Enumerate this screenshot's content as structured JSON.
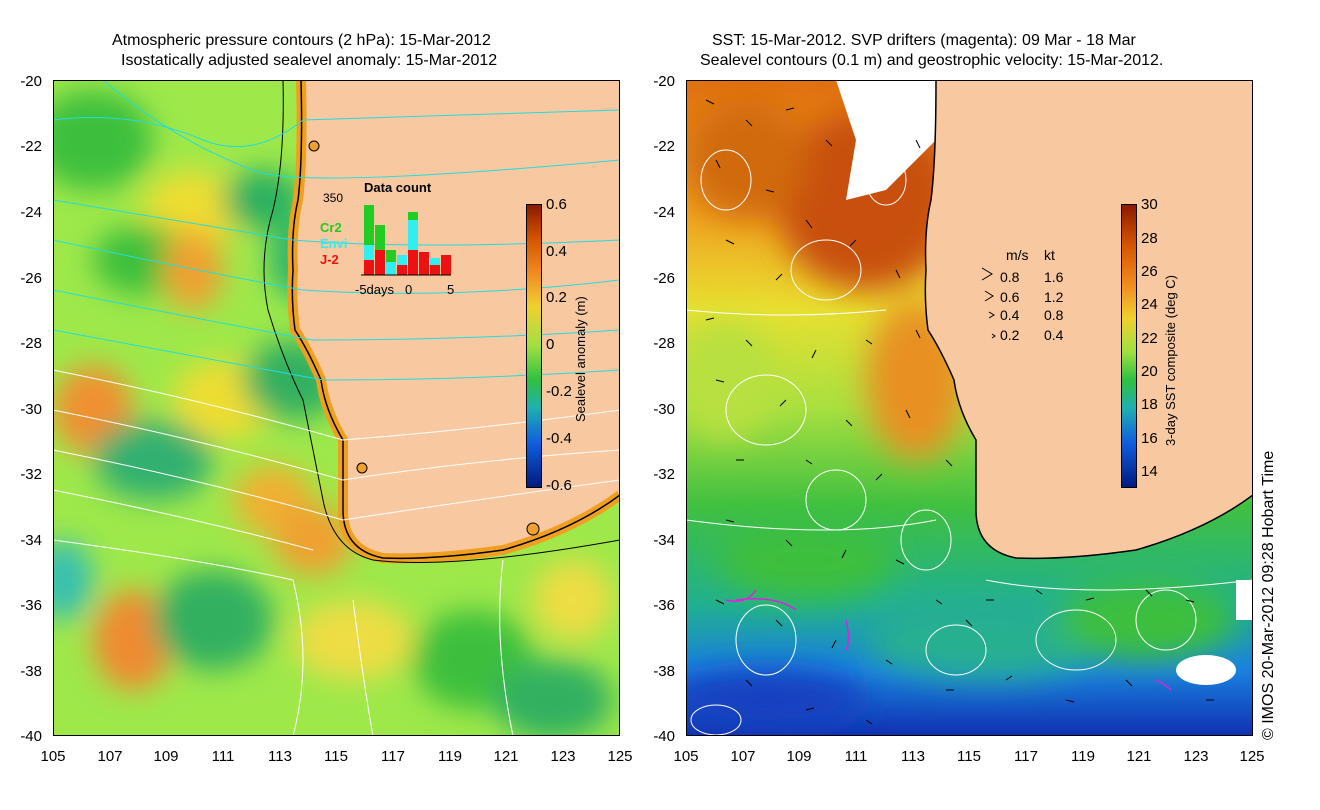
{
  "left_panel": {
    "title_line1": "Atmospheric pressure contours (2 hPa): 15-Mar-2012",
    "title_line2": "Isostatically adjusted sealevel anomaly: 15-Mar-2012",
    "colorbar_label": "Sealevel anomaly (m)",
    "colorbar_ticks": [
      "0.6",
      "0.4",
      "0.2",
      "0",
      "-0.2",
      "-0.4",
      "-0.6"
    ],
    "inset": {
      "title": "Data count",
      "ymax_label": "350",
      "legend": [
        {
          "name": "Cr2",
          "color": "#22cc22"
        },
        {
          "name": "Envi",
          "color": "#33eeee"
        },
        {
          "name": "J-2",
          "color": "#ee1111"
        }
      ],
      "xaxis_label": "-5days",
      "xtick_mid": "0",
      "xtick_right": "5"
    }
  },
  "right_panel": {
    "title_line1": "SST: 15-Mar-2012. SVP drifters (magenta): 09 Mar - 18 Mar",
    "title_line2": "Sealevel contours (0.1 m) and geostrophic velocity: 15-Mar-2012.",
    "colorbar_label": "3-day SST composite (deg C)",
    "colorbar_ticks": [
      "30",
      "28",
      "26",
      "24",
      "22",
      "20",
      "18",
      "16",
      "14"
    ],
    "speed_legend": {
      "header_ms": "m/s",
      "header_kt": "kt",
      "rows": [
        {
          "ms": "0.8",
          "kt": "1.6"
        },
        {
          "ms": "0.6",
          "kt": "1.2"
        },
        {
          "ms": "0.4",
          "kt": "0.8"
        },
        {
          "ms": "0.2",
          "kt": "0.4"
        }
      ]
    }
  },
  "axes": {
    "lat_ticks": [
      "-20",
      "-22",
      "-24",
      "-26",
      "-28",
      "-30",
      "-32",
      "-34",
      "-36",
      "-38",
      "-40"
    ],
    "lon_ticks": [
      "105",
      "107",
      "109",
      "111",
      "113",
      "115",
      "117",
      "119",
      "121",
      "123",
      "125"
    ]
  },
  "credit": "© IMOS 20-Mar-2012 09:28 Hobart Time",
  "colors": {
    "land": "#f8c8a0",
    "contour_pressure": "#22dddd",
    "contour_sealevel": "#ffffff"
  }
}
